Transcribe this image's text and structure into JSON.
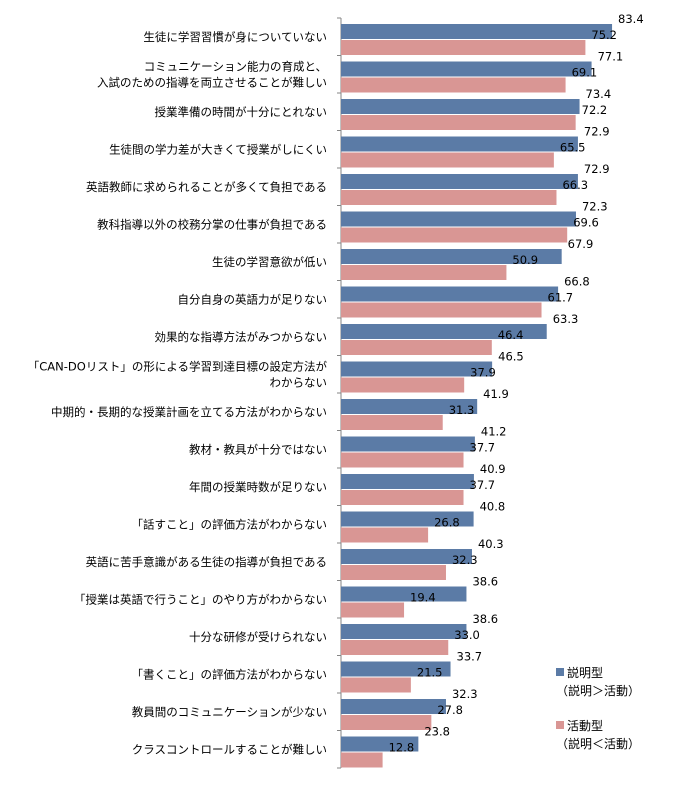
{
  "chart_data": {
    "type": "bar",
    "orientation": "horizontal",
    "categories": [
      [
        "生徒に学習習慣が身についていない"
      ],
      [
        "コミュニケーション能力の育成と、",
        "入試のための指導を両立させることが難しい"
      ],
      [
        "授業準備の時間が十分にとれない"
      ],
      [
        "生徒間の学力差が大きくて授業がしにくい"
      ],
      [
        "英語教師に求められることが多くて負担である"
      ],
      [
        "教科指導以外の校務分掌の仕事が負担である"
      ],
      [
        "生徒の学習意欲が低い"
      ],
      [
        "自分自身の英語力が足りない"
      ],
      [
        "効果的な指導方法がみつからない"
      ],
      [
        "「CAN-DOリスト」の形による学習到達目標の設定方法が",
        "わからない"
      ],
      [
        "中期的・長期的な授業計画を立てる方法がわからない"
      ],
      [
        "教材・教具が十分ではない"
      ],
      [
        "年間の授業時数が足りない"
      ],
      [
        "「話すこと」の評価方法がわからない"
      ],
      [
        "英語に苦手意識がある生徒の指導が負担である"
      ],
      [
        "「授業は英語で行うこと」のやり方がわからない"
      ],
      [
        "十分な研修が受けられない"
      ],
      [
        "「書くこと」の評価方法がわからない"
      ],
      [
        "教員間のコミュニケーションが少ない"
      ],
      [
        "クラスコントロールすることが難しい"
      ]
    ],
    "series": [
      {
        "name": [
          "説明型",
          "（説明＞活動）"
        ],
        "color": "#5b7ba6",
        "values": [
          83.4,
          77.1,
          73.4,
          72.9,
          72.9,
          72.3,
          67.9,
          66.8,
          63.3,
          46.5,
          41.9,
          41.2,
          40.9,
          40.8,
          40.3,
          38.6,
          38.6,
          33.7,
          32.3,
          23.8
        ]
      },
      {
        "name": [
          "活動型",
          "（説明＜活動）"
        ],
        "color": "#d99694",
        "values": [
          75.2,
          69.1,
          72.2,
          65.5,
          66.3,
          69.6,
          50.9,
          61.7,
          46.4,
          37.9,
          31.3,
          37.7,
          37.7,
          26.8,
          32.3,
          19.4,
          33.0,
          21.5,
          27.8,
          12.8
        ]
      }
    ],
    "xlim": [
      0,
      100
    ],
    "grid": false,
    "legend": "bottom-right"
  }
}
